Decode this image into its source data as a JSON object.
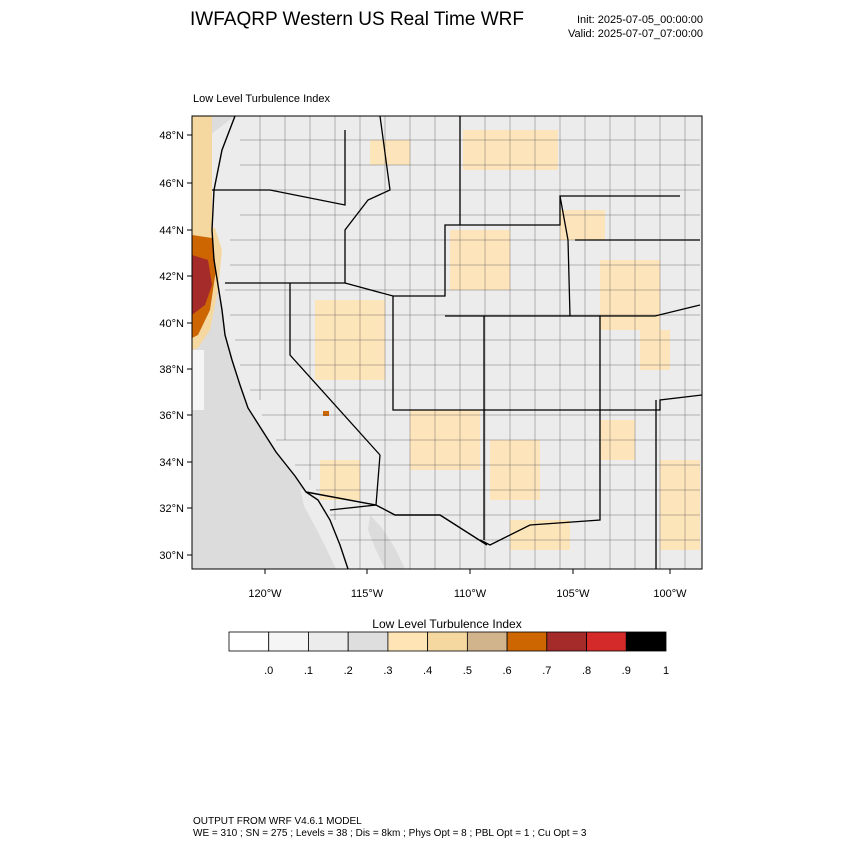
{
  "title": "IWFAQRP Western US Real Time WRF",
  "run": {
    "init": "Init: 2025-07-05_00:00:00",
    "valid": "Valid: 2025-07-07_07:00:00"
  },
  "field_title": "Low Level Turbulence Index",
  "map": {
    "lat_labels": [
      "48°N",
      "46°N",
      "44°N",
      "42°N",
      "40°N",
      "38°N",
      "36°N",
      "34°N",
      "32°N",
      "30°N"
    ],
    "lon_labels": [
      "120°W",
      "115°W",
      "110°W",
      "105°W",
      "100°W"
    ],
    "lat_range": [
      29.5,
      48.6
    ],
    "lon_range": [
      -123.5,
      -98.3
    ],
    "colors": {
      "ocean": "#dcdcdc",
      "land": "#ececec",
      "boundary": "#000000",
      "county": "#333333"
    }
  },
  "colorbar": {
    "title": "Low Level Turbulence Index",
    "labels": [
      ".0",
      ".1",
      ".2",
      ".3",
      ".4",
      ".5",
      ".6",
      ".7",
      ".8",
      ".9",
      "1"
    ],
    "colors": [
      "#ffffff",
      "#f5f5f5",
      "#ececec",
      "#dedede",
      "#ffe4b5",
      "#f5d8a0",
      "#d2b48c",
      "#cd6600",
      "#a52a2a",
      "#d42a2a",
      "#000000"
    ]
  },
  "footer": {
    "line1": "OUTPUT FROM WRF V4.6.1 MODEL",
    "line2": "WE = 310 ; SN = 275 ; Levels = 38 ; Dis = 8km ; Phys Opt = 8 ; PBL Opt = 1 ; Cu Opt = 3"
  }
}
